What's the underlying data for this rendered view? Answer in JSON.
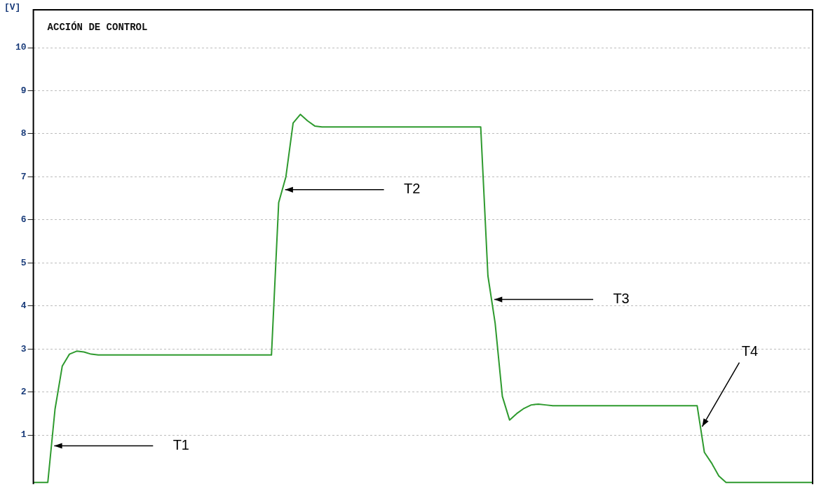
{
  "chart_data": {
    "type": "line",
    "title": "ACCIÓN DE CONTROL",
    "ylabel": "[V]",
    "categories": [
      null,
      null,
      null,
      null,
      null,
      null,
      null,
      null,
      null,
      null,
      null,
      null,
      null,
      null,
      null,
      null,
      null,
      null,
      null,
      null,
      null,
      null,
      null,
      null,
      null,
      null,
      null,
      null,
      null,
      null,
      null,
      null,
      null,
      null,
      null,
      null,
      null,
      null,
      null,
      null,
      null,
      null,
      null,
      null,
      null,
      null,
      null,
      null,
      null,
      null,
      null,
      null,
      null,
      null,
      null,
      null,
      null,
      null,
      null,
      null,
      null,
      null,
      null,
      null,
      null,
      null,
      null,
      null,
      null,
      null,
      null,
      null,
      null,
      null,
      null,
      null,
      null,
      null,
      null,
      null,
      null,
      null,
      null,
      null,
      null,
      null,
      null,
      null,
      null,
      null,
      null,
      null,
      null,
      null,
      null,
      null,
      null,
      null,
      null,
      null,
      null,
      null,
      null,
      null,
      null,
      null,
      null,
      null,
      null
    ],
    "series": [
      {
        "color": "#2e9a2e",
        "values": [
          -0.1,
          -0.1,
          -0.1,
          1.6,
          2.6,
          2.88,
          2.95,
          2.93,
          2.88,
          2.86,
          2.86,
          2.86,
          2.86,
          2.86,
          2.86,
          2.86,
          2.86,
          2.86,
          2.86,
          2.86,
          2.86,
          2.86,
          2.86,
          2.86,
          2.86,
          2.86,
          2.86,
          2.86,
          2.86,
          2.86,
          2.86,
          2.86,
          2.86,
          2.86,
          6.4,
          7.0,
          8.25,
          8.45,
          8.3,
          8.18,
          8.16,
          8.16,
          8.16,
          8.16,
          8.16,
          8.16,
          8.16,
          8.16,
          8.16,
          8.16,
          8.16,
          8.16,
          8.16,
          8.16,
          8.16,
          8.16,
          8.16,
          8.16,
          8.16,
          8.16,
          8.16,
          8.16,
          8.16,
          4.7,
          3.6,
          1.9,
          1.35,
          1.5,
          1.62,
          1.7,
          1.72,
          1.7,
          1.68,
          1.68,
          1.68,
          1.68,
          1.68,
          1.68,
          1.68,
          1.68,
          1.68,
          1.68,
          1.68,
          1.68,
          1.68,
          1.68,
          1.68,
          1.68,
          1.68,
          1.68,
          1.68,
          1.68,
          1.68,
          0.6,
          0.35,
          0.05,
          -0.1,
          -0.1,
          -0.1,
          -0.1,
          -0.1,
          -0.1,
          -0.1,
          -0.1,
          -0.1,
          -0.1,
          -0.1,
          -0.1,
          -0.1
        ]
      }
    ],
    "ylim": [
      -0.14,
      10.88
    ],
    "yticks": [
      1,
      2,
      3,
      4,
      5,
      6,
      7,
      8,
      9,
      10
    ],
    "grid": "y",
    "tick_labels": "y",
    "marker": "none",
    "line_style": "solid",
    "legend": false,
    "annotations": [
      "T1",
      "T2",
      "T3",
      "T4"
    ]
  }
}
